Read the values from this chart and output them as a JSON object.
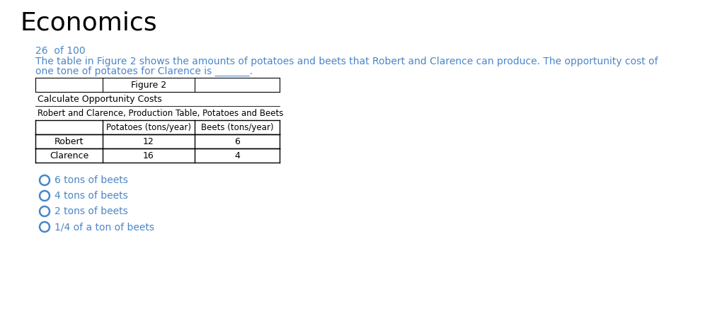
{
  "title": "Economics",
  "title_color": "#000000",
  "title_fontsize": 26,
  "title_weight": "normal",
  "counter": "26  of 100",
  "counter_color": "#4a86c8",
  "counter_fontsize": 10,
  "question_line1": "The table in Figure 2 shows the amounts of potatoes and beets that Robert and Clarence can produce. The opportunity cost of",
  "question_line2": "one tone of potatoes for Clarence is _______.",
  "question_color": "#4a86c8",
  "question_fontsize": 10,
  "figure_label": "Figure 2",
  "table_title1": "Calculate Opportunity Costs",
  "table_title2": "Robert and Clarence, Production Table, Potatoes and Beets",
  "col_headers": [
    "",
    "Potatoes (tons/year)",
    "Beets (tons/year)"
  ],
  "rows": [
    [
      "Robert",
      "12",
      "6"
    ],
    [
      "Clarence",
      "16",
      "4"
    ]
  ],
  "options": [
    "6 tons of beets",
    "4 tons of beets",
    "2 tons of beets",
    "1/4 of a ton of beets"
  ],
  "options_color": "#4a86c8",
  "options_fontsize": 10,
  "bg_color": "#ffffff",
  "table_text_color": "#000000",
  "table_fontsize": 9
}
